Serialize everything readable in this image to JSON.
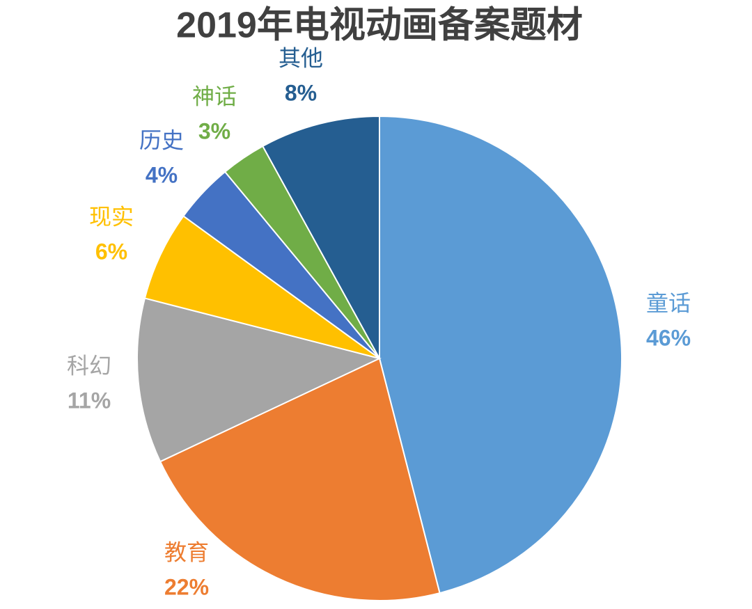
{
  "chart_data": {
    "type": "pie",
    "title": "2019年电视动画备案题材",
    "categories": [
      "童话",
      "教育",
      "科幻",
      "现实",
      "历史",
      "神话",
      "其他"
    ],
    "values": [
      46,
      22,
      11,
      6,
      4,
      3,
      8
    ],
    "value_labels": [
      "46%",
      "22%",
      "11%",
      "6%",
      "4%",
      "3%",
      "8%"
    ],
    "colors": [
      "#5b9bd5",
      "#ed7d31",
      "#a5a5a5",
      "#ffc000",
      "#4472c4",
      "#70ad47",
      "#255e91"
    ]
  }
}
